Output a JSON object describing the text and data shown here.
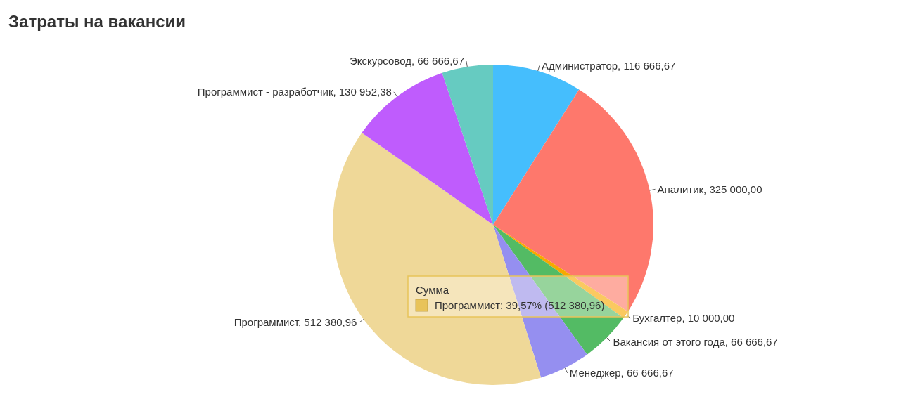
{
  "chart_data": {
    "type": "pie",
    "title": "Затраты на вакансии",
    "categories": [
      "Администратор",
      "Аналитик",
      "Бухгалтер",
      "Вакансия от этого года",
      "Менеджер",
      "Программист",
      "Программист - разработчик",
      "Экскурсовод"
    ],
    "values": [
      116666.67,
      325000,
      10000,
      66666.67,
      66666.67,
      512380.96,
      130952.38,
      66666.67
    ],
    "value_labels": [
      "116 666,67",
      "325 000,00",
      "10 000,00",
      "66 666,67",
      "66 666,67",
      "512 380,96",
      "130 952,38",
      "66 666,67"
    ],
    "colors": [
      "#45befd",
      "#fe786c",
      "#f7a800",
      "#53bb64",
      "#958ff0",
      "#efd898",
      "#bf5cfd",
      "#66cbc1"
    ],
    "annotations": [
      "Сумма",
      "Программист: 39,57% (512 380,96)"
    ],
    "legend": false
  }
}
